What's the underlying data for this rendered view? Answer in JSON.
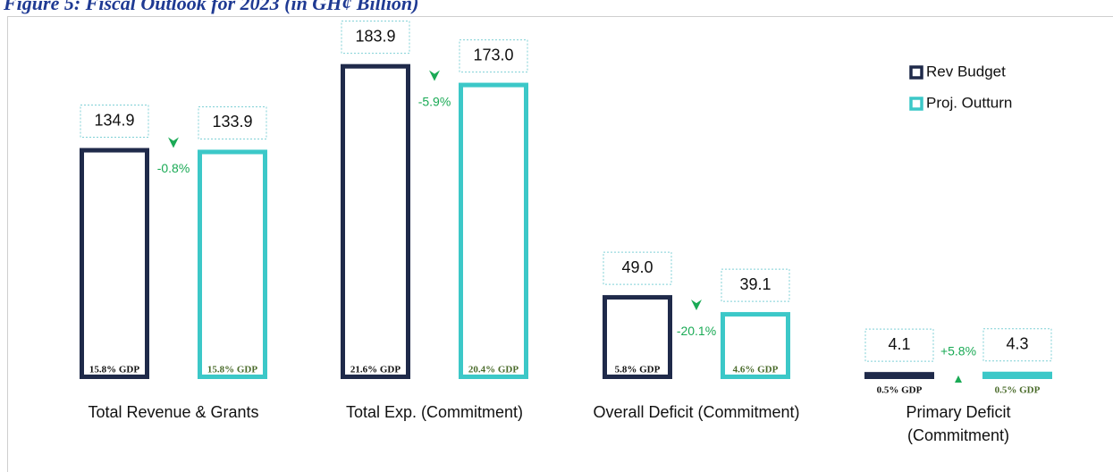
{
  "chart_data": {
    "type": "bar",
    "title": "Figure 5: Fiscal Outlook for 2023 (in GH¢ Billion)",
    "categories": [
      "Total Revenue & Grants",
      "Total Exp. (Commitment)",
      "Overall Deficit (Commitment)",
      "Primary Deficit (Commitment)"
    ],
    "series": [
      {
        "name": "Rev Budget",
        "color": "#1f2a4a",
        "values": [
          134.9,
          183.9,
          49.0,
          4.1
        ],
        "value_labels": [
          "134.9",
          "183.9",
          "49.0",
          "4.1"
        ],
        "gdp_values": [
          15.8,
          21.6,
          5.8,
          0.5
        ],
        "gdp_labels": [
          "15.8% GDP",
          "21.6% GDP",
          "5.8% GDP",
          "0.5% GDP"
        ],
        "gdp_color": "#111111"
      },
      {
        "name": "Proj. Outturn",
        "color": "#3cc8c8",
        "values": [
          133.9,
          173.0,
          39.1,
          4.3
        ],
        "value_labels": [
          "133.9",
          "173.0",
          "39.1",
          "4.3"
        ],
        "gdp_values": [
          15.8,
          20.4,
          4.6,
          0.5
        ],
        "gdp_labels": [
          "15.8% GDP",
          "20.4% GDP",
          "4.6% GDP",
          "0.5% GDP"
        ],
        "gdp_color": "#4a6b2a"
      }
    ],
    "changes": {
      "values": [
        -0.8,
        -5.9,
        -20.1,
        5.8
      ],
      "value_labels": [
        "-0.8%",
        "-5.9%",
        "-20.1%",
        "+5.8%"
      ],
      "color": "#1aaa55"
    },
    "ylim": [
      0,
      190
    ],
    "legend": "top-right"
  }
}
